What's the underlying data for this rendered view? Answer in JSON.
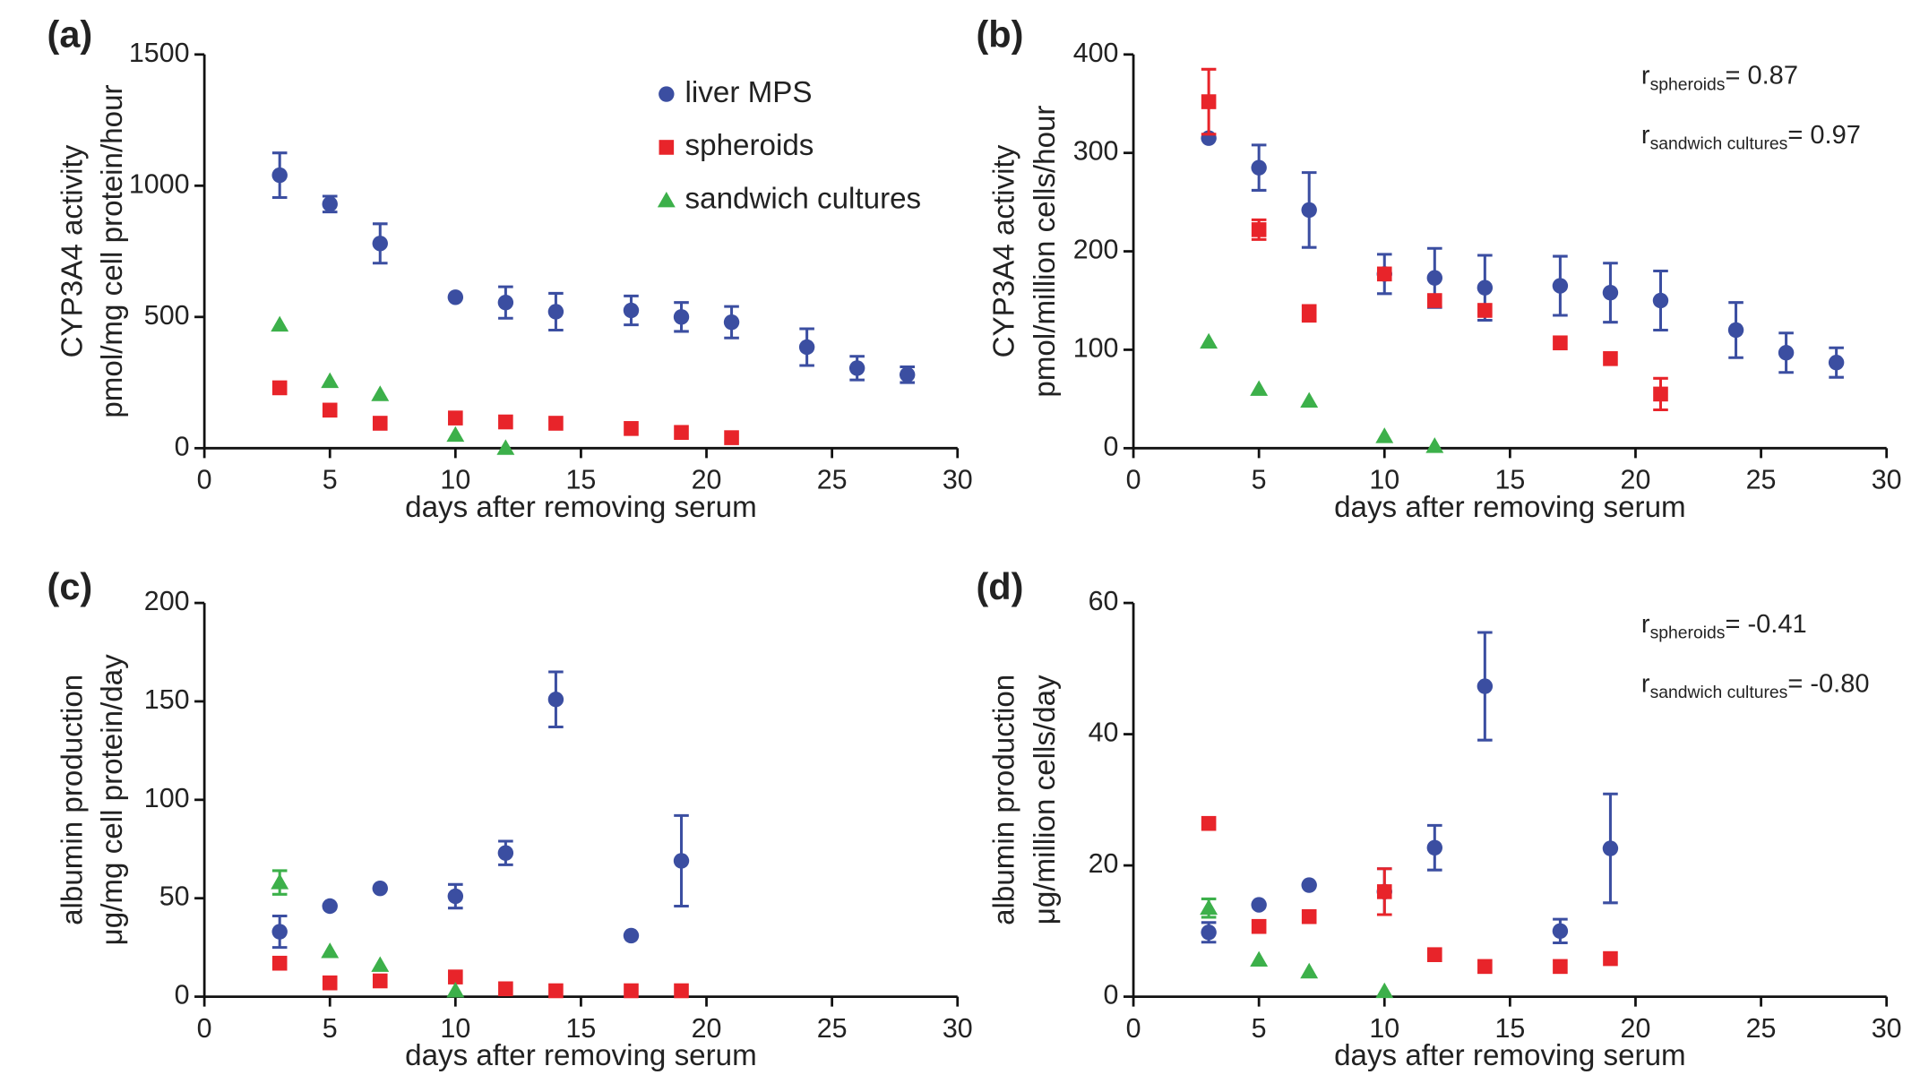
{
  "colors": {
    "mps": "#3b4ea1",
    "spheroids": "#e8242a",
    "sandwich": "#3cb04a",
    "axis": "#111111"
  },
  "legend": {
    "entries": [
      {
        "key": "mps",
        "marker": "circle",
        "label": "liver MPS"
      },
      {
        "key": "spheroids",
        "marker": "square",
        "label": "spheroids"
      },
      {
        "key": "sandwich",
        "marker": "triangle",
        "label": "sandwich cultures"
      }
    ]
  },
  "chart_data": [
    {
      "panel": "(a)",
      "type": "scatter",
      "xlabel": "days after removing serum",
      "ylabel": [
        "CYP3A4 activity",
        "pmol/mg cell protein/hour"
      ],
      "xlim": [
        0,
        30
      ],
      "xticks": [
        0,
        5,
        10,
        15,
        20,
        25,
        30
      ],
      "ylim": [
        0,
        1500
      ],
      "yticks": [
        0,
        500,
        1000,
        1500
      ],
      "legend": "top-right",
      "series": [
        {
          "key": "mps",
          "name": "liver MPS",
          "x": [
            3,
            5,
            7,
            10,
            12,
            14,
            17,
            19,
            21,
            24,
            26,
            28
          ],
          "y": [
            1040,
            930,
            780,
            575,
            555,
            520,
            525,
            500,
            480,
            385,
            305,
            280
          ],
          "err": [
            85,
            30,
            75,
            0,
            60,
            70,
            55,
            55,
            60,
            70,
            45,
            30
          ]
        },
        {
          "key": "spheroids",
          "name": "spheroids",
          "x": [
            3,
            5,
            7,
            10,
            12,
            14,
            17,
            19,
            21
          ],
          "y": [
            230,
            145,
            95,
            115,
            100,
            95,
            75,
            60,
            40
          ]
        },
        {
          "key": "sandwich",
          "name": "sandwich cultures",
          "x": [
            3,
            5,
            7,
            10,
            12
          ],
          "y": [
            470,
            255,
            205,
            50,
            0
          ]
        }
      ]
    },
    {
      "panel": "(b)",
      "type": "scatter",
      "xlabel": "days after removing serum",
      "ylabel": [
        "CYP3A4 activity",
        "pmol/million cells/hour"
      ],
      "xlim": [
        0,
        30
      ],
      "xticks": [
        0,
        5,
        10,
        15,
        20,
        25,
        30
      ],
      "ylim": [
        0,
        400
      ],
      "yticks": [
        0,
        100,
        200,
        300,
        400
      ],
      "annotations": [
        {
          "r": "r",
          "sub": "spheroids",
          "text": "= 0.87"
        },
        {
          "r": "r",
          "sub": "sandwich cultures",
          "text": "= 0.97"
        }
      ],
      "series": [
        {
          "key": "mps",
          "name": "liver MPS",
          "x": [
            3,
            5,
            7,
            10,
            12,
            14,
            17,
            19,
            21,
            24,
            26,
            28
          ],
          "y": [
            315,
            285,
            242,
            177,
            173,
            163,
            165,
            158,
            150,
            120,
            97,
            87
          ],
          "err": [
            0,
            23,
            38,
            20,
            30,
            33,
            30,
            30,
            30,
            28,
            20,
            15
          ]
        },
        {
          "key": "spheroids",
          "name": "spheroids",
          "x": [
            3,
            5,
            7,
            10,
            12,
            14,
            17,
            19,
            21
          ],
          "y": [
            352,
            222,
            137,
            177,
            150,
            140,
            107,
            91,
            55
          ],
          "err": [
            33,
            10,
            8,
            0,
            0,
            0,
            0,
            0,
            16
          ]
        },
        {
          "key": "sandwich",
          "name": "sandwich cultures",
          "x": [
            3,
            5,
            7,
            10,
            12
          ],
          "y": [
            108,
            60,
            48,
            12,
            2
          ]
        }
      ]
    },
    {
      "panel": "(c)",
      "type": "scatter",
      "xlabel": "days after removing serum",
      "ylabel": [
        "albumin production",
        "μg/mg cell protein/day"
      ],
      "xlim": [
        0,
        30
      ],
      "xticks": [
        0,
        5,
        10,
        15,
        20,
        25,
        30
      ],
      "ylim": [
        0,
        200
      ],
      "yticks": [
        0,
        50,
        100,
        150,
        200
      ],
      "series": [
        {
          "key": "mps",
          "name": "liver MPS",
          "x": [
            3,
            5,
            7,
            10,
            12,
            14,
            17,
            19
          ],
          "y": [
            33,
            46,
            55,
            51,
            73,
            151,
            31,
            69
          ],
          "err": [
            8,
            0,
            0,
            6,
            6,
            14,
            0,
            23
          ]
        },
        {
          "key": "spheroids",
          "name": "spheroids",
          "x": [
            3,
            5,
            7,
            10,
            12,
            14,
            17,
            19
          ],
          "y": [
            17,
            7,
            8,
            10,
            4,
            3,
            3,
            3
          ]
        },
        {
          "key": "sandwich",
          "name": "sandwich cultures",
          "x": [
            3,
            5,
            7,
            10
          ],
          "y": [
            58,
            23,
            16,
            3
          ],
          "err": [
            6,
            0,
            0,
            0
          ]
        }
      ]
    },
    {
      "panel": "(d)",
      "type": "scatter",
      "xlabel": "days after removing serum",
      "ylabel": [
        "albumin production",
        "μg/million cells/day"
      ],
      "xlim": [
        0,
        30
      ],
      "xticks": [
        0,
        5,
        10,
        15,
        20,
        25,
        30
      ],
      "ylim": [
        0,
        60
      ],
      "yticks": [
        0,
        20,
        40,
        60
      ],
      "annotations": [
        {
          "r": "r",
          "sub": "spheroids",
          "text": "= -0.41"
        },
        {
          "r": "r",
          "sub": "sandwich cultures",
          "text": "= -0.80"
        }
      ],
      "series": [
        {
          "key": "mps",
          "name": "liver MPS",
          "x": [
            3,
            5,
            7,
            10,
            12,
            14,
            17,
            19
          ],
          "y": [
            9.8,
            14,
            17,
            16,
            22.7,
            47.3,
            10,
            22.6
          ],
          "err": [
            1.5,
            0,
            0,
            3.5,
            3.4,
            8.2,
            1.8,
            8.3
          ]
        },
        {
          "key": "spheroids",
          "name": "spheroids",
          "x": [
            3,
            5,
            7,
            10,
            12,
            14,
            17,
            19
          ],
          "y": [
            26.4,
            10.7,
            12.2,
            16,
            6.4,
            4.6,
            4.6,
            5.8
          ],
          "err": [
            0,
            0,
            0,
            3.5,
            0,
            0,
            0,
            0
          ]
        },
        {
          "key": "sandwich",
          "name": "sandwich cultures",
          "x": [
            3,
            5,
            7,
            10
          ],
          "y": [
            13.5,
            5.6,
            3.8,
            0.8
          ],
          "err": [
            1.4,
            0,
            0,
            0
          ]
        }
      ]
    }
  ]
}
